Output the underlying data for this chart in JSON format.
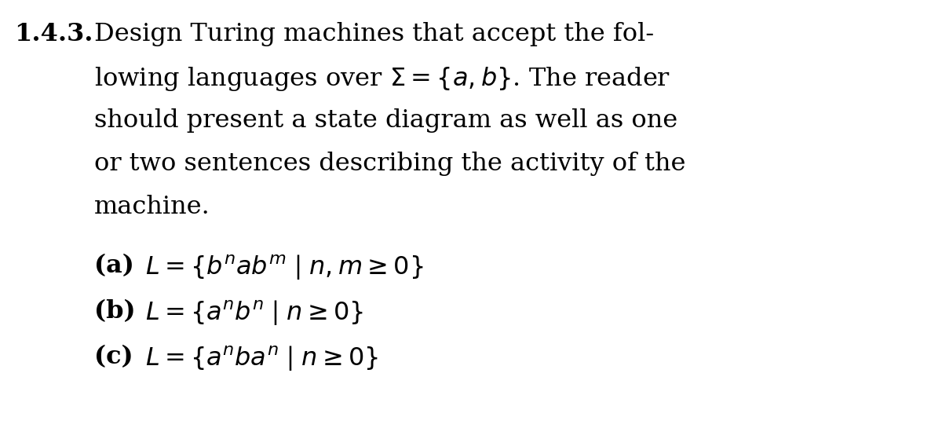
{
  "background_color": "#ffffff",
  "fig_width": 12.0,
  "fig_height": 5.59,
  "dpi": 100,
  "text_color": "#000000",
  "label": "1.4.3.",
  "label_fontsize": 23,
  "paragraph_fontsize": 23,
  "item_fontsize": 23,
  "paragraph_lines": [
    "Design Turing machines that accept the fol-",
    "lowing languages over $\\Sigma = \\{a, b\\}$. The reader",
    "should present a state diagram as well as one",
    "or two sentences describing the activity of the",
    "machine."
  ],
  "items": [
    {
      "label": "\\textbf{(a)}",
      "math": "$L = \\{b^n ab^m \\mid n, m \\geq 0\\}$"
    },
    {
      "label": "\\textbf{(b)}",
      "math": "$L = \\{a^n b^n \\mid n \\geq 0\\}$"
    },
    {
      "label": "\\textbf{(c)}",
      "math": "$L = \\{a^n b a^n \\mid n \\geq 0\\}$"
    }
  ]
}
